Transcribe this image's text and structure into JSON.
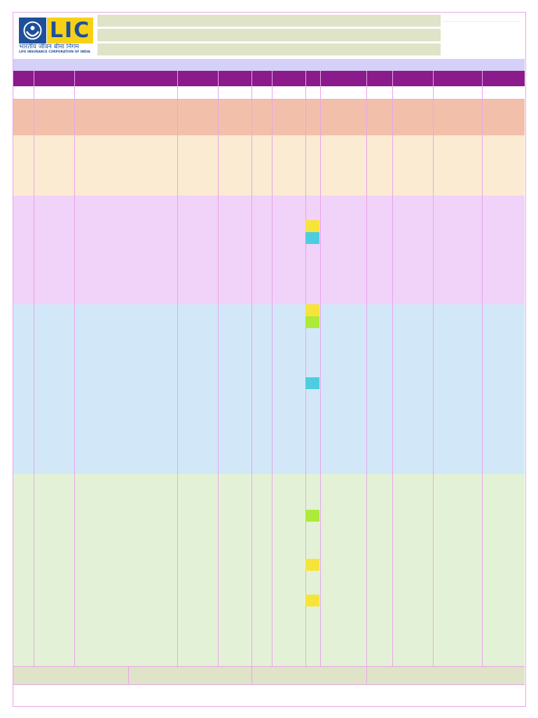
{
  "logo": {
    "mark": "LIC",
    "hindi_name": "भारतीय जीवन बीमा निगम",
    "english_name": "LIFE INSURANCE CORPORATION OF INDIA"
  }
}
